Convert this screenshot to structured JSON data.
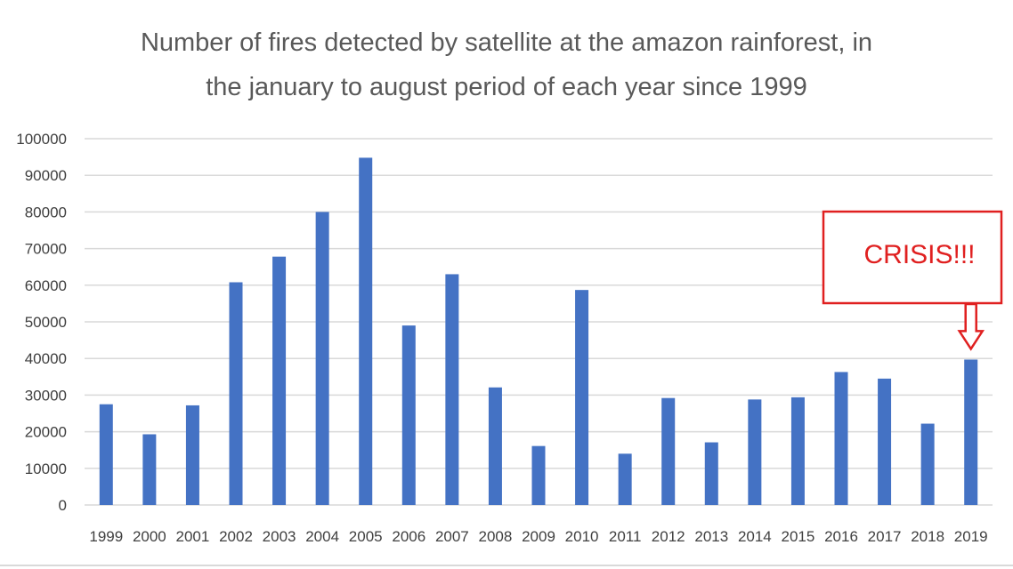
{
  "chart_data": {
    "type": "bar",
    "title": "Number of fires detected by satellite at the amazon rainforest, in the january to august period of each year since 1999",
    "title_lines": [
      "Number of fires detected by satellite at the amazon rainforest, in",
      "the january to august period of each year since 1999"
    ],
    "categories": [
      "1999",
      "2000",
      "2001",
      "2002",
      "2003",
      "2004",
      "2005",
      "2006",
      "2007",
      "2008",
      "2009",
      "2010",
      "2011",
      "2012",
      "2013",
      "2014",
      "2015",
      "2016",
      "2017",
      "2018",
      "2019"
    ],
    "values": [
      27500,
      19300,
      27200,
      60800,
      67800,
      80000,
      94800,
      49000,
      63000,
      32100,
      16100,
      58700,
      14000,
      29200,
      17100,
      28800,
      29400,
      36300,
      34500,
      22200,
      39700
    ],
    "ylim": [
      0,
      100000
    ],
    "yticks": [
      0,
      10000,
      20000,
      30000,
      40000,
      50000,
      60000,
      70000,
      80000,
      90000,
      100000
    ],
    "ytick_labels": [
      "0",
      "10000",
      "20000",
      "30000",
      "40000",
      "50000",
      "60000",
      "70000",
      "80000",
      "90000",
      "100000"
    ],
    "grid": true,
    "xlabel": "",
    "ylabel": "",
    "bar_color": "#4472c4",
    "annotation": {
      "text": "CRISIS!!!",
      "target_category": "2019",
      "color": "#e02020"
    }
  }
}
